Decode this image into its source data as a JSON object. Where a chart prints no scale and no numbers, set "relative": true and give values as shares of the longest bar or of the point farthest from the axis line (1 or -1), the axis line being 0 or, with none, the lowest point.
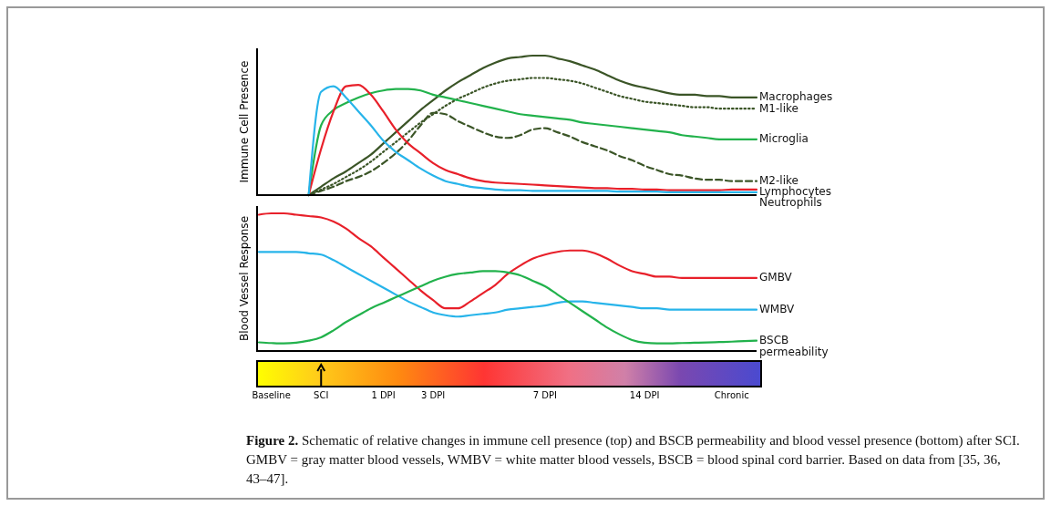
{
  "chart_data": [
    {
      "type": "line",
      "ylabel": "Immune Cell Presence",
      "relative": true,
      "categories": [
        null,
        null,
        null,
        null,
        null,
        null,
        null,
        null,
        null,
        null,
        null,
        null,
        null,
        null,
        null,
        null,
        null,
        null,
        null,
        null,
        null,
        null,
        null,
        null,
        null,
        null,
        null,
        null,
        null,
        null,
        null,
        null,
        null,
        null,
        null,
        null,
        null,
        null,
        null,
        null,
        null
      ],
      "tick_labels": false,
      "marker": "none",
      "line_style": "solid",
      "series": [
        {
          "name": "Macrophages",
          "color": "#3b5527",
          "values": [
            null,
            null,
            null,
            null,
            0,
            0.06,
            0.12,
            0.17,
            0.23,
            0.29,
            0.37,
            0.45,
            0.53,
            0.61,
            0.68,
            0.75,
            0.81,
            0.86,
            0.91,
            0.95,
            0.98,
            0.99,
            1.0,
            1.0,
            0.98,
            0.96,
            0.93,
            0.9,
            0.86,
            0.82,
            0.79,
            0.77,
            0.75,
            0.73,
            0.72,
            0.72,
            0.71,
            0.71,
            0.7,
            0.7,
            0.7
          ]
        },
        {
          "name": "M1-like",
          "color": "#3b5527",
          "line_style": "dotted",
          "values": [
            null,
            null,
            null,
            null,
            0,
            0.04,
            0.08,
            0.13,
            0.18,
            0.24,
            0.31,
            0.38,
            0.45,
            0.52,
            0.58,
            0.64,
            0.69,
            0.73,
            0.77,
            0.8,
            0.82,
            0.83,
            0.84,
            0.84,
            0.83,
            0.82,
            0.8,
            0.77,
            0.74,
            0.71,
            0.69,
            0.67,
            0.66,
            0.65,
            0.64,
            0.63,
            0.63,
            0.62,
            0.62,
            0.62,
            0.62
          ]
        },
        {
          "name": "Microglia",
          "color": "#22b24c",
          "values": [
            null,
            null,
            null,
            null,
            0,
            0.5,
            0.61,
            0.66,
            0.7,
            0.73,
            0.75,
            0.76,
            0.76,
            0.75,
            0.72,
            0.7,
            0.68,
            0.66,
            0.64,
            0.62,
            0.6,
            0.58,
            0.57,
            0.56,
            0.55,
            0.54,
            0.52,
            0.51,
            0.5,
            0.49,
            0.48,
            0.47,
            0.46,
            0.45,
            0.43,
            0.42,
            0.41,
            0.4,
            0.4,
            0.4,
            0.4
          ]
        },
        {
          "name": "M2-like",
          "color": "#3b5527",
          "line_style": "dashed",
          "values": [
            null,
            null,
            null,
            null,
            0,
            0.03,
            0.06,
            0.1,
            0.13,
            0.17,
            0.23,
            0.3,
            0.39,
            0.5,
            0.59,
            0.58,
            0.53,
            0.49,
            0.45,
            0.42,
            0.41,
            0.43,
            0.47,
            0.48,
            0.45,
            0.42,
            0.38,
            0.35,
            0.32,
            0.28,
            0.25,
            0.21,
            0.18,
            0.15,
            0.14,
            0.12,
            0.11,
            0.11,
            0.1,
            0.1,
            0.1
          ]
        },
        {
          "name": "Lymphocytes",
          "color": "#e8202a",
          "values": [
            null,
            null,
            null,
            null,
            0,
            0.33,
            0.6,
            0.78,
            0.79,
            0.72,
            0.6,
            0.47,
            0.37,
            0.3,
            0.23,
            0.18,
            0.15,
            0.12,
            0.1,
            0.09,
            0.085,
            0.08,
            0.075,
            0.07,
            0.065,
            0.06,
            0.055,
            0.05,
            0.05,
            0.045,
            0.045,
            0.04,
            0.04,
            0.035,
            0.035,
            0.035,
            0.035,
            0.035,
            0.04,
            0.04,
            0.04
          ]
        },
        {
          "name": "Neutrophils",
          "color": "#27b4ea",
          "values": [
            null,
            null,
            null,
            null,
            0,
            0.74,
            0.78,
            0.7,
            0.6,
            0.5,
            0.39,
            0.31,
            0.25,
            0.19,
            0.14,
            0.1,
            0.08,
            0.06,
            0.05,
            0.04,
            0.035,
            0.035,
            0.03,
            0.03,
            0.03,
            0.03,
            0.03,
            0.03,
            0.03,
            0.025,
            0.025,
            0.025,
            0.025,
            0.02,
            0.02,
            0.02,
            0.02,
            0.02,
            0.02,
            0.02,
            0.02
          ]
        }
      ]
    },
    {
      "type": "line",
      "ylabel": "Blood Vessel Response",
      "relative": true,
      "categories": [
        null,
        "Baseline",
        null,
        null,
        null,
        "SCI",
        null,
        null,
        null,
        null,
        "1 DPI",
        null,
        null,
        null,
        "3 DPI",
        null,
        null,
        null,
        null,
        null,
        null,
        null,
        null,
        "7 DPI",
        null,
        null,
        null,
        null,
        null,
        null,
        null,
        "14 DPI",
        null,
        null,
        null,
        null,
        null,
        null,
        "Chronic",
        null,
        null
      ],
      "tick_labels": "x",
      "marker": "none",
      "line_style": "solid",
      "annotations": [
        "Figure 2. Schematic of relative changes in immune cell presence (top) and BSCB permeability and blood vessel presence (bottom) after SCI. GMBV = gray matter blood vessels, WMBV = white matter blood vessels, BSCB = blood spinal cord barrier. Based on data from [35, 36, 43–47]."
      ],
      "series": [
        {
          "name": "GMBV",
          "color": "#e8202a",
          "values": [
            0.99,
            1.0,
            1.0,
            0.99,
            0.98,
            0.97,
            0.94,
            0.89,
            0.82,
            0.76,
            0.68,
            0.6,
            0.52,
            0.44,
            0.37,
            0.31,
            0.31,
            0.36,
            0.42,
            0.48,
            0.56,
            0.62,
            0.67,
            0.7,
            0.72,
            0.73,
            0.73,
            0.71,
            0.67,
            0.62,
            0.58,
            0.56,
            0.54,
            0.54,
            0.53,
            0.53,
            0.53,
            0.53,
            0.53,
            0.53,
            0.53
          ]
        },
        {
          "name": "WMBV",
          "color": "#27b4ea",
          "values": [
            0.72,
            0.72,
            0.72,
            0.72,
            0.71,
            0.7,
            0.66,
            0.61,
            0.56,
            0.51,
            0.46,
            0.41,
            0.36,
            0.32,
            0.28,
            0.26,
            0.25,
            0.26,
            0.27,
            0.28,
            0.3,
            0.31,
            0.32,
            0.33,
            0.35,
            0.36,
            0.36,
            0.35,
            0.34,
            0.33,
            0.32,
            0.31,
            0.31,
            0.3,
            0.3,
            0.3,
            0.3,
            0.3,
            0.3,
            0.3,
            0.3
          ]
        },
        {
          "name": "BSCB permeability",
          "color": "#22b24c",
          "values": [
            0.063,
            0.058,
            0.055,
            0.06,
            0.075,
            0.1,
            0.15,
            0.21,
            0.26,
            0.31,
            0.35,
            0.39,
            0.43,
            0.47,
            0.51,
            0.54,
            0.56,
            0.57,
            0.58,
            0.58,
            0.57,
            0.55,
            0.51,
            0.47,
            0.41,
            0.35,
            0.29,
            0.23,
            0.17,
            0.12,
            0.08,
            0.06,
            0.055,
            0.055,
            0.058,
            0.06,
            0.062,
            0.065,
            0.068,
            0.072,
            0.075
          ]
        }
      ]
    }
  ]
}
